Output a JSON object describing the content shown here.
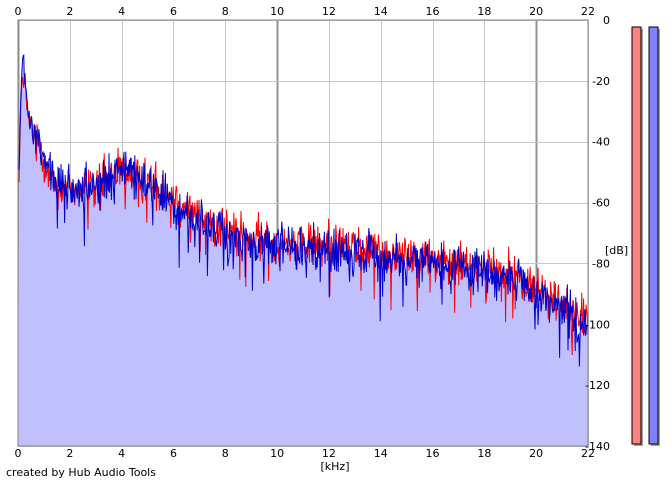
{
  "credit": "created by Hub Audio Tools",
  "colors": {
    "background": "#ffffff",
    "grid_minor": "#c8c8c8",
    "grid_major": "#909090",
    "fill": "#c0c0ff",
    "left_channel": "#ff0000",
    "right_channel": "#0000cc",
    "meter_left": "#ff8080",
    "meter_right": "#8080ff",
    "meter_shadow": "#a0a0a0"
  },
  "chart_data": {
    "type": "line",
    "title": "",
    "xlabel": "[kHz]",
    "ylabel": "[dB]",
    "xlim": [
      0,
      22
    ],
    "ylim": [
      -140,
      0
    ],
    "x_ticks": [
      "0",
      "2",
      "4",
      "6",
      "8",
      "10",
      "12",
      "14",
      "16",
      "18",
      "20",
      "22"
    ],
    "x_ticks_top": [
      "0",
      "2",
      "4",
      "6",
      "8",
      "10",
      "12",
      "14",
      "16",
      "18",
      "20",
      "22"
    ],
    "y_ticks": [
      "0",
      "-20",
      "-40",
      "-60",
      "-80",
      "-100",
      "-120",
      "-140"
    ],
    "major_x_gridlines": [
      0,
      10,
      20
    ],
    "grid": true,
    "fill_under": "right",
    "series": [
      {
        "channel": "left",
        "color": "#ff0000",
        "x": [
          0.05,
          0.1,
          0.2,
          0.3,
          0.4,
          0.6,
          0.8,
          1.0,
          1.2,
          1.5,
          2.0,
          2.5,
          3.0,
          3.5,
          4.0,
          4.3,
          4.6,
          5.0,
          5.5,
          6.0,
          6.5,
          7.0,
          7.5,
          8.0,
          8.5,
          9.0,
          9.5,
          10.0,
          11.0,
          12.0,
          13.0,
          14.0,
          15.0,
          16.0,
          17.0,
          18.0,
          19.0,
          19.5,
          20.0,
          21.0,
          21.5,
          22.0
        ],
        "y": [
          -50,
          -30,
          -15,
          -25,
          -33,
          -38,
          -40,
          -45,
          -50,
          -55,
          -55,
          -55,
          -55,
          -52,
          -50,
          -50,
          -52,
          -53,
          -56,
          -58,
          -62,
          -65,
          -67,
          -69,
          -71,
          -72,
          -73,
          -73,
          -74,
          -73,
          -75,
          -76,
          -77,
          -78,
          -80,
          -82,
          -84,
          -86,
          -88,
          -93,
          -97,
          -100
        ]
      },
      {
        "channel": "right",
        "color": "#0000cc",
        "x": [
          0.05,
          0.1,
          0.2,
          0.3,
          0.4,
          0.6,
          0.8,
          1.0,
          1.2,
          1.5,
          2.0,
          2.5,
          3.0,
          3.5,
          4.0,
          4.3,
          4.6,
          5.0,
          5.5,
          6.0,
          6.5,
          7.0,
          7.5,
          8.0,
          8.5,
          9.0,
          9.5,
          10.0,
          11.0,
          12.0,
          13.0,
          14.0,
          15.0,
          16.0,
          17.0,
          18.0,
          19.0,
          19.5,
          20.0,
          21.0,
          21.5,
          22.0
        ],
        "y": [
          -48,
          -25,
          -12,
          -22,
          -32,
          -38,
          -41,
          -46,
          -50,
          -55,
          -56,
          -56,
          -55,
          -53,
          -50,
          -48,
          -51,
          -53,
          -57,
          -60,
          -64,
          -66,
          -68,
          -70,
          -72,
          -73,
          -74,
          -74,
          -75,
          -75,
          -77,
          -78,
          -79,
          -80,
          -81,
          -83,
          -86,
          -88,
          -89,
          -94,
          -98,
          -101
        ]
      }
    ],
    "noise_amplitude_db": 4.5,
    "level_meters": {
      "left": {
        "color": "#ff8080",
        "level": 1.0
      },
      "right": {
        "color": "#8080ff",
        "level": 1.0
      }
    }
  }
}
